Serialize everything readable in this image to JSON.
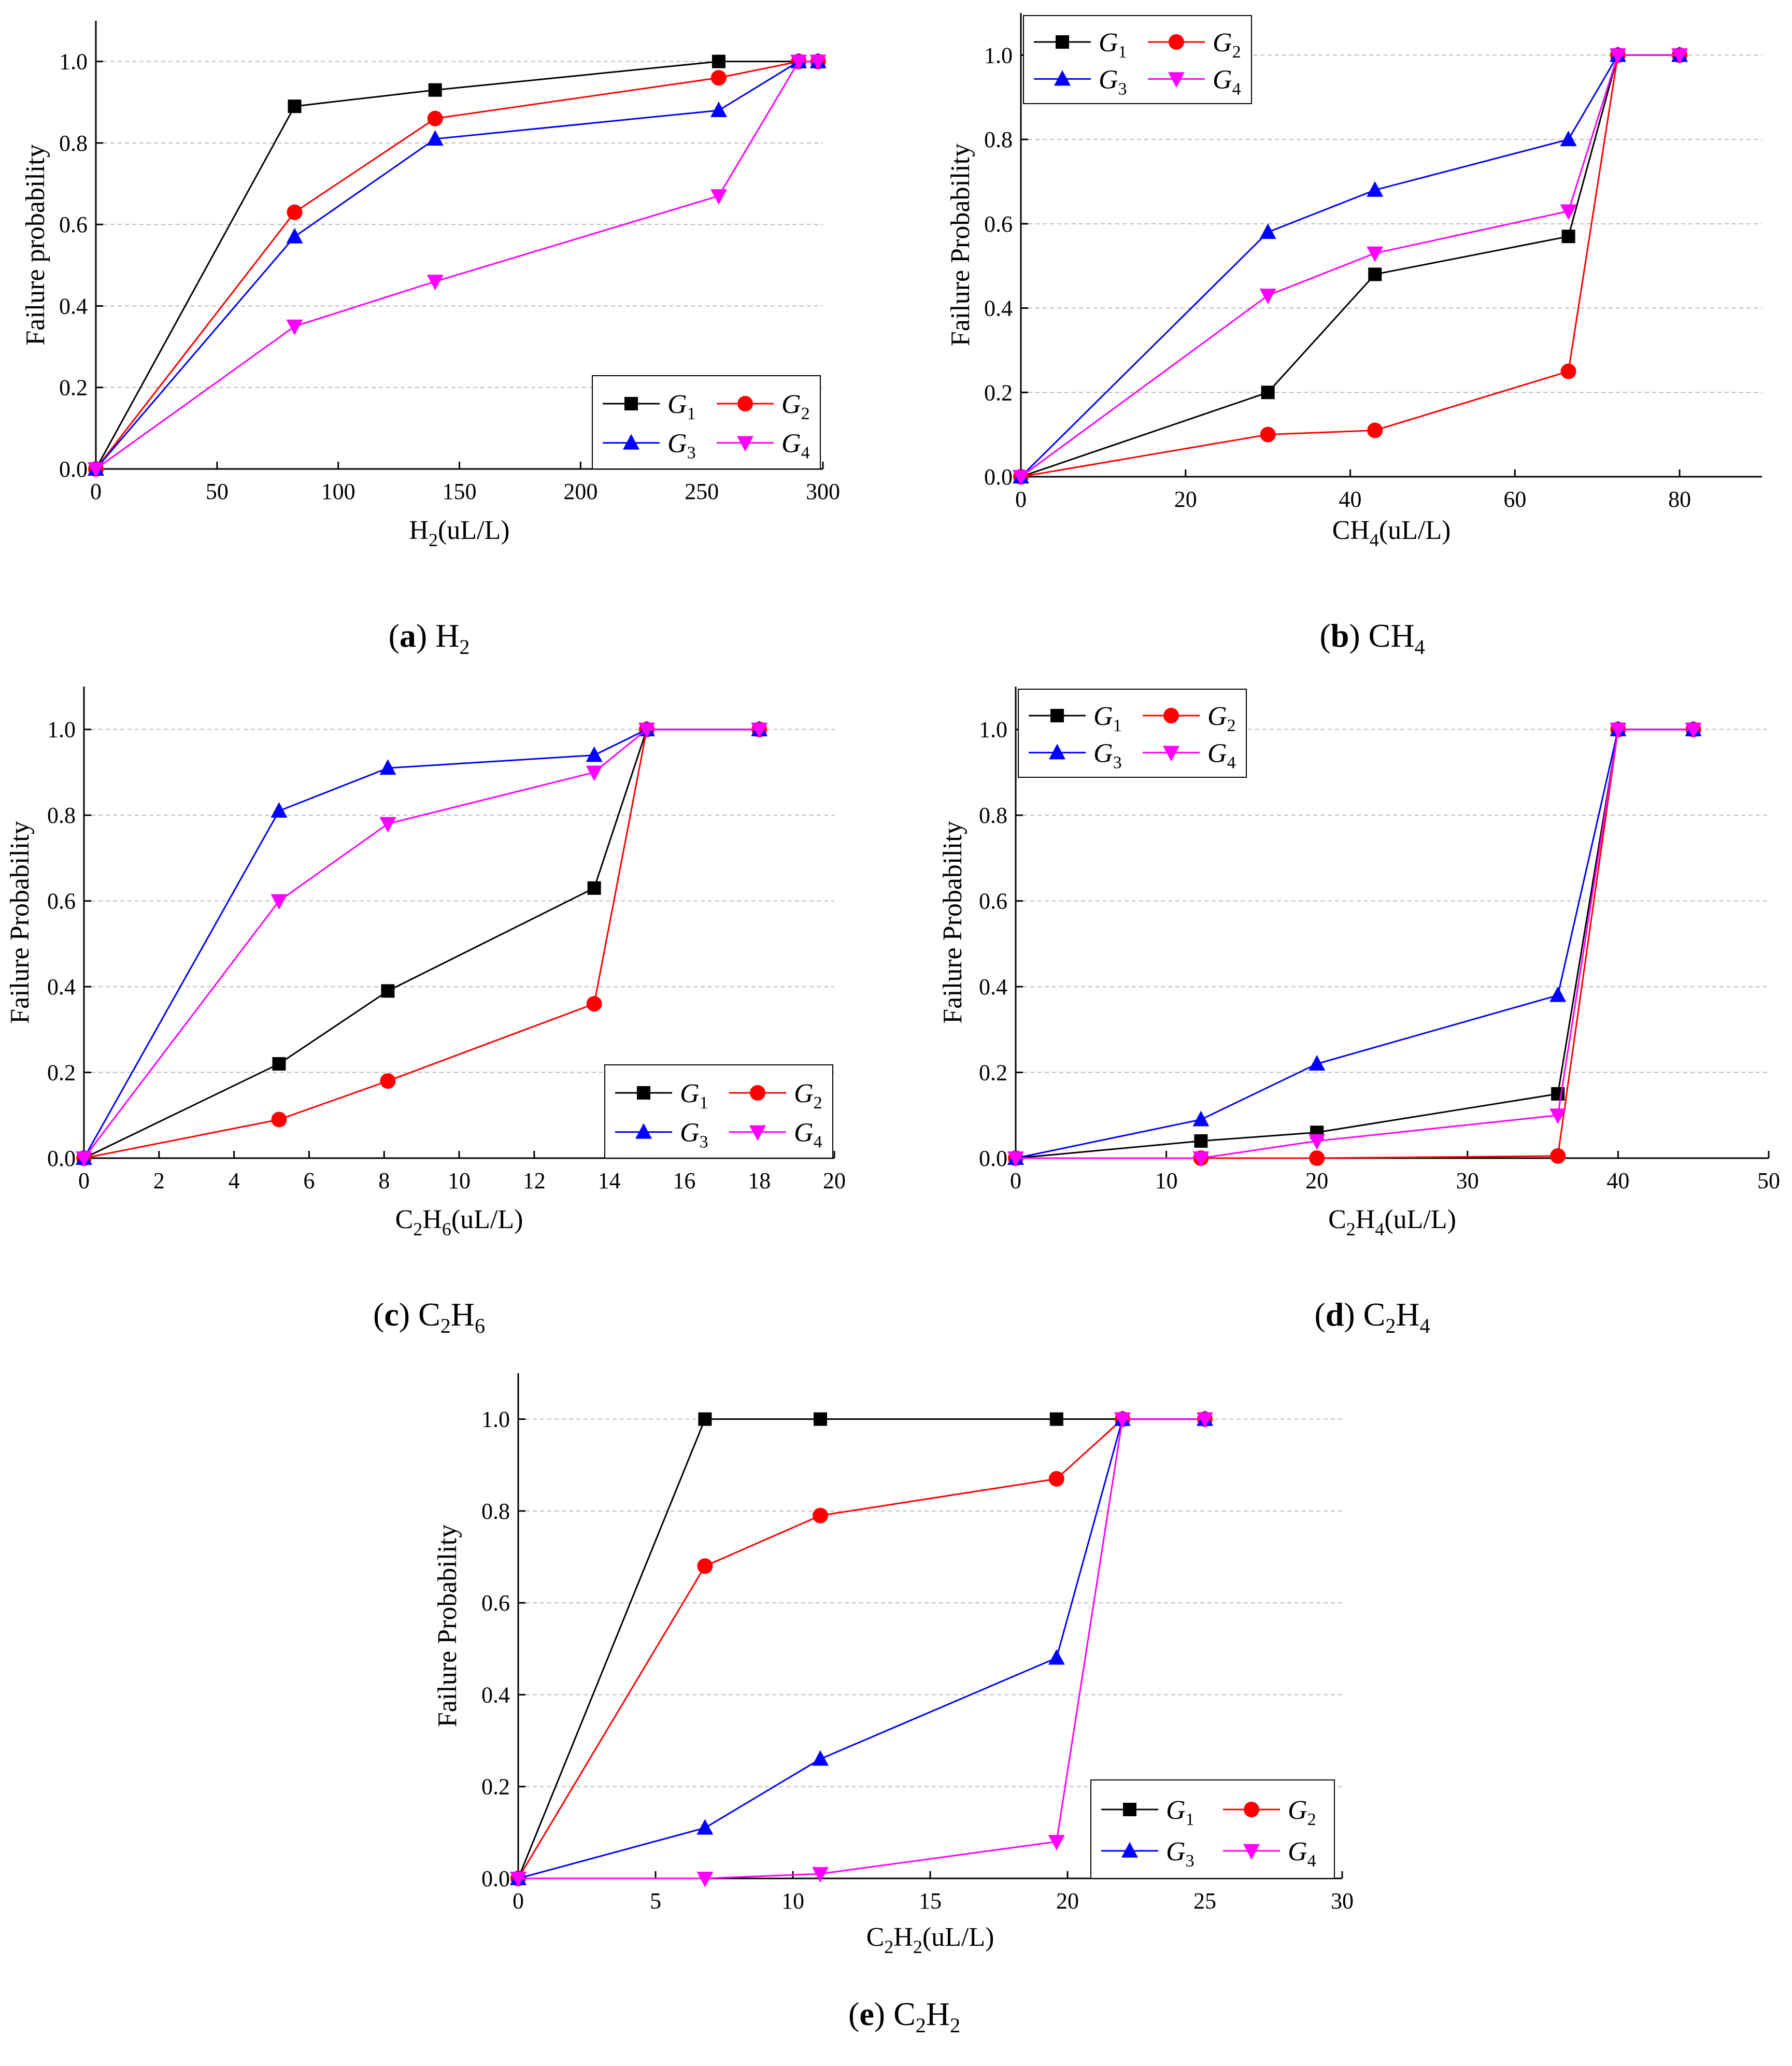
{
  "chart_data": [
    {
      "id": "a",
      "type": "line",
      "caption": {
        "letter": "a",
        "gas": "H",
        "sub": "2"
      },
      "xlabel": {
        "main": "H",
        "sub": "2",
        "rest": "(uL/L)"
      },
      "ylabel": "Failure probability",
      "xlim": [
        0,
        300
      ],
      "ylim": [
        0,
        1.1
      ],
      "xticks": [
        0,
        50,
        100,
        150,
        200,
        250,
        300
      ],
      "yticks": [
        0.0,
        0.2,
        0.4,
        0.6,
        0.8,
        1.0
      ],
      "grid": true,
      "legend_position": "bottom-right",
      "series": [
        {
          "name": "G",
          "sub": "1",
          "color": "#000000",
          "marker": "square",
          "x": [
            0,
            82,
            140,
            257,
            290,
            298
          ],
          "y": [
            0,
            0.89,
            0.93,
            1.0,
            1.0,
            1.0
          ]
        },
        {
          "name": "G",
          "sub": "2",
          "color": "#ff0000",
          "marker": "circle",
          "x": [
            0,
            82,
            140,
            257,
            290,
            298
          ],
          "y": [
            0,
            0.63,
            0.86,
            0.96,
            1.0,
            1.0
          ]
        },
        {
          "name": "G",
          "sub": "3",
          "color": "#0000ff",
          "marker": "triangle-up",
          "x": [
            0,
            82,
            140,
            257,
            290,
            298
          ],
          "y": [
            0,
            0.57,
            0.81,
            0.88,
            1.0,
            1.0
          ]
        },
        {
          "name": "G",
          "sub": "4",
          "color": "#ff00ff",
          "marker": "triangle-down",
          "x": [
            0,
            82,
            140,
            257,
            290,
            298
          ],
          "y": [
            0,
            0.35,
            0.46,
            0.67,
            1.0,
            1.0
          ]
        }
      ]
    },
    {
      "id": "b",
      "type": "line",
      "caption": {
        "letter": "b",
        "gas": "CH",
        "sub": "4"
      },
      "xlabel": {
        "main": "CH",
        "sub": "4",
        "rest": "(uL/L)"
      },
      "ylabel": "Failure Probability",
      "xlim": [
        0,
        90
      ],
      "ylim": [
        0,
        1.1
      ],
      "xticks": [
        0,
        20,
        40,
        60,
        80
      ],
      "yticks": [
        0.0,
        0.2,
        0.4,
        0.6,
        0.8,
        1.0
      ],
      "grid": true,
      "legend_position": "top-left",
      "series": [
        {
          "name": "G",
          "sub": "1",
          "color": "#000000",
          "marker": "square",
          "x": [
            0,
            30,
            43,
            66.5,
            72.5,
            80
          ],
          "y": [
            0,
            0.2,
            0.48,
            0.57,
            1.0,
            1.0
          ]
        },
        {
          "name": "G",
          "sub": "2",
          "color": "#ff0000",
          "marker": "circle",
          "x": [
            0,
            30,
            43,
            66.5,
            72.5,
            80
          ],
          "y": [
            0,
            0.1,
            0.11,
            0.25,
            1.0,
            1.0
          ]
        },
        {
          "name": "G",
          "sub": "3",
          "color": "#0000ff",
          "marker": "triangle-up",
          "x": [
            0,
            30,
            43,
            66.5,
            72.5,
            80
          ],
          "y": [
            0,
            0.58,
            0.68,
            0.8,
            1.0,
            1.0
          ]
        },
        {
          "name": "G",
          "sub": "4",
          "color": "#ff00ff",
          "marker": "triangle-down",
          "x": [
            0,
            30,
            43,
            66.5,
            72.5,
            80
          ],
          "y": [
            0,
            0.43,
            0.53,
            0.63,
            1.0,
            1.0
          ]
        }
      ]
    },
    {
      "id": "c",
      "type": "line",
      "caption": {
        "letter": "c",
        "gas": "C2H6"
      },
      "xlabel": {
        "main": "C",
        "sub": "2",
        "main2": "H",
        "sub2": "6",
        "rest": "(uL/L)"
      },
      "ylabel": "Failure Probability",
      "xlim": [
        0,
        20
      ],
      "ylim": [
        0,
        1.1
      ],
      "xticks": [
        0,
        2,
        4,
        6,
        8,
        10,
        12,
        14,
        16,
        18,
        20
      ],
      "yticks": [
        0.0,
        0.2,
        0.4,
        0.6,
        0.8,
        1.0
      ],
      "grid": true,
      "legend_position": "bottom-right",
      "series": [
        {
          "name": "G",
          "sub": "1",
          "color": "#000000",
          "marker": "square",
          "x": [
            0,
            5.2,
            8.1,
            13.6,
            15,
            18
          ],
          "y": [
            0,
            0.22,
            0.39,
            0.63,
            1.0,
            1.0
          ]
        },
        {
          "name": "G",
          "sub": "2",
          "color": "#ff0000",
          "marker": "circle",
          "x": [
            0,
            5.2,
            8.1,
            13.6,
            15,
            18
          ],
          "y": [
            0,
            0.09,
            0.18,
            0.36,
            1.0,
            1.0
          ]
        },
        {
          "name": "G",
          "sub": "3",
          "color": "#0000ff",
          "marker": "triangle-up",
          "x": [
            0,
            5.2,
            8.1,
            13.6,
            15,
            18
          ],
          "y": [
            0,
            0.81,
            0.91,
            0.94,
            1.0,
            1.0
          ]
        },
        {
          "name": "G",
          "sub": "4",
          "color": "#ff00ff",
          "marker": "triangle-down",
          "x": [
            0,
            5.2,
            8.1,
            13.6,
            15,
            18
          ],
          "y": [
            0,
            0.6,
            0.78,
            0.9,
            1.0,
            1.0
          ]
        }
      ]
    },
    {
      "id": "d",
      "type": "line",
      "caption": {
        "letter": "d",
        "gas": "C2H4"
      },
      "xlabel": {
        "main": "C",
        "sub": "2",
        "main2": "H",
        "sub2": "4",
        "rest": "(uL/L)"
      },
      "ylabel": "Failure Probability",
      "xlim": [
        0,
        50
      ],
      "ylim": [
        0,
        1.1
      ],
      "xticks": [
        0,
        10,
        20,
        30,
        40,
        50
      ],
      "yticks": [
        0.0,
        0.2,
        0.4,
        0.6,
        0.8,
        1.0
      ],
      "grid": true,
      "legend_position": "top-left",
      "series": [
        {
          "name": "G",
          "sub": "1",
          "color": "#000000",
          "marker": "square",
          "x": [
            0,
            12.3,
            20,
            36,
            40,
            45
          ],
          "y": [
            0,
            0.04,
            0.06,
            0.15,
            1.0,
            1.0
          ]
        },
        {
          "name": "G",
          "sub": "2",
          "color": "#ff0000",
          "marker": "circle",
          "x": [
            0,
            12.3,
            20,
            36,
            40,
            45
          ],
          "y": [
            0,
            0.0,
            0.0,
            0.005,
            1.0,
            1.0
          ]
        },
        {
          "name": "G",
          "sub": "3",
          "color": "#0000ff",
          "marker": "triangle-up",
          "x": [
            0,
            12.3,
            20,
            36,
            40,
            45
          ],
          "y": [
            0,
            0.09,
            0.22,
            0.38,
            1.0,
            1.0
          ]
        },
        {
          "name": "G",
          "sub": "4",
          "color": "#ff00ff",
          "marker": "triangle-down",
          "x": [
            0,
            12.3,
            20,
            36,
            40,
            45
          ],
          "y": [
            0,
            0.0,
            0.04,
            0.1,
            1.0,
            1.0
          ]
        }
      ]
    },
    {
      "id": "e",
      "type": "line",
      "caption": {
        "letter": "e",
        "gas": "C2H2"
      },
      "xlabel": {
        "main": "C",
        "sub": "2",
        "main2": "H",
        "sub2": "2",
        "rest": "(uL/L)"
      },
      "ylabel": "Failure Probability",
      "xlim": [
        0,
        30
      ],
      "ylim": [
        0,
        1.1
      ],
      "xticks": [
        0,
        5,
        10,
        15,
        20,
        25,
        30
      ],
      "yticks": [
        0.0,
        0.2,
        0.4,
        0.6,
        0.8,
        1.0
      ],
      "grid": true,
      "legend_position": "bottom-right",
      "series": [
        {
          "name": "G",
          "sub": "1",
          "color": "#000000",
          "marker": "square",
          "x": [
            0,
            6.8,
            11,
            19.6,
            22,
            25
          ],
          "y": [
            0,
            1.0,
            1.0,
            1.0,
            1.0,
            1.0
          ]
        },
        {
          "name": "G",
          "sub": "2",
          "color": "#ff0000",
          "marker": "circle",
          "x": [
            0,
            6.8,
            11,
            19.6,
            22,
            25
          ],
          "y": [
            0,
            0.68,
            0.79,
            0.87,
            1.0,
            1.0
          ]
        },
        {
          "name": "G",
          "sub": "3",
          "color": "#0000ff",
          "marker": "triangle-up",
          "x": [
            0,
            6.8,
            11,
            19.6,
            22,
            25
          ],
          "y": [
            0,
            0.11,
            0.26,
            0.48,
            1.0,
            1.0
          ]
        },
        {
          "name": "G",
          "sub": "4",
          "color": "#ff00ff",
          "marker": "triangle-down",
          "x": [
            0,
            6.8,
            11,
            19.6,
            22,
            25
          ],
          "y": [
            0,
            0.0,
            0.01,
            0.08,
            1.0,
            1.0
          ]
        }
      ]
    }
  ]
}
